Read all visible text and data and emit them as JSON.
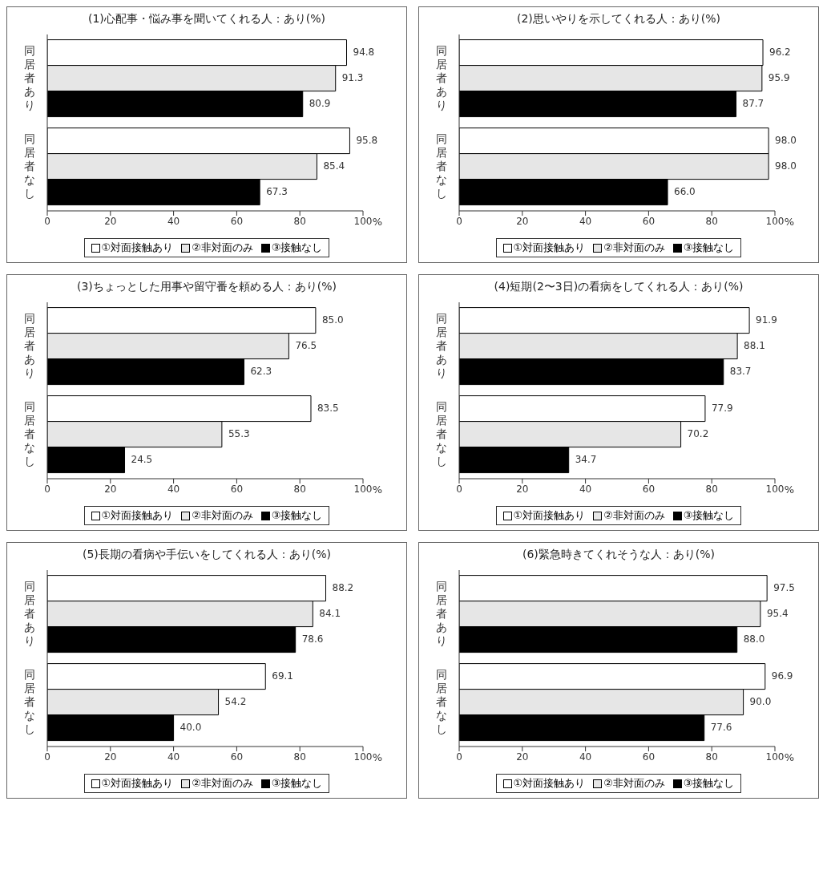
{
  "chart_data": [
    {
      "type": "bar",
      "orientation": "horizontal",
      "title": "(1)心配事・悩み事を聞いてくれる人：あり(%)",
      "xlabel": "%",
      "categories": [
        "同居者あり",
        "同居者なし"
      ],
      "xlim": [
        0,
        100
      ],
      "xticks": [
        0,
        20,
        40,
        60,
        80,
        100
      ],
      "legend": "bottom",
      "grid": false,
      "series": [
        {
          "name": "①対面接触あり",
          "color": "#ffffff",
          "values": [
            94.8,
            95.8
          ],
          "value_labels": [
            "94.8",
            "95.8"
          ]
        },
        {
          "name": "②非対面のみ",
          "color": "#e6e6e6",
          "values": [
            91.3,
            85.4
          ],
          "value_labels": [
            "91.3",
            "85.4"
          ]
        },
        {
          "name": "③接触なし",
          "color": "#000000",
          "values": [
            80.9,
            67.3
          ],
          "value_labels": [
            "80.9",
            "67.3"
          ]
        }
      ]
    },
    {
      "type": "bar",
      "orientation": "horizontal",
      "title": "(2)思いやりを示してくれる人：あり(%)",
      "xlabel": "%",
      "categories": [
        "同居者あり",
        "同居者なし"
      ],
      "xlim": [
        0,
        100
      ],
      "xticks": [
        0,
        20,
        40,
        60,
        80,
        100
      ],
      "legend": "bottom",
      "grid": false,
      "series": [
        {
          "name": "①対面接触あり",
          "color": "#ffffff",
          "values": [
            96.2,
            98.0
          ],
          "value_labels": [
            "96.2",
            "98.0"
          ]
        },
        {
          "name": "②非対面のみ",
          "color": "#e6e6e6",
          "values": [
            95.9,
            98.0
          ],
          "value_labels": [
            "95.9",
            "98.0"
          ]
        },
        {
          "name": "③接触なし",
          "color": "#000000",
          "values": [
            87.7,
            66.0
          ],
          "value_labels": [
            "87.7",
            "66.0"
          ]
        }
      ]
    },
    {
      "type": "bar",
      "orientation": "horizontal",
      "title": "(3)ちょっとした用事や留守番を頼める人：あり(%)",
      "xlabel": "%",
      "categories": [
        "同居者あり",
        "同居者なし"
      ],
      "xlim": [
        0,
        100
      ],
      "xticks": [
        0,
        20,
        40,
        60,
        80,
        100
      ],
      "legend": "bottom",
      "grid": false,
      "series": [
        {
          "name": "①対面接触あり",
          "color": "#ffffff",
          "values": [
            85.0,
            83.5
          ],
          "value_labels": [
            "85.0",
            "83.5"
          ]
        },
        {
          "name": "②非対面のみ",
          "color": "#e6e6e6",
          "values": [
            76.5,
            55.3
          ],
          "value_labels": [
            "76.5",
            "55.3"
          ]
        },
        {
          "name": "③接触なし",
          "color": "#000000",
          "values": [
            62.3,
            24.5
          ],
          "value_labels": [
            "62.3",
            "24.5"
          ]
        }
      ]
    },
    {
      "type": "bar",
      "orientation": "horizontal",
      "title": "(4)短期(2〜3日)の看病をしてくれる人：あり(%)",
      "xlabel": "%",
      "categories": [
        "同居者あり",
        "同居者なし"
      ],
      "xlim": [
        0,
        100
      ],
      "xticks": [
        0,
        20,
        40,
        60,
        80,
        100
      ],
      "legend": "bottom",
      "grid": false,
      "series": [
        {
          "name": "①対面接触あり",
          "color": "#ffffff",
          "values": [
            91.9,
            77.9
          ],
          "value_labels": [
            "91.9",
            "77.9"
          ]
        },
        {
          "name": "②非対面のみ",
          "color": "#e6e6e6",
          "values": [
            88.1,
            70.2
          ],
          "value_labels": [
            "88.1",
            "70.2"
          ]
        },
        {
          "name": "③接触なし",
          "color": "#000000",
          "values": [
            83.7,
            34.7
          ],
          "value_labels": [
            "83.7",
            "34.7"
          ]
        }
      ]
    },
    {
      "type": "bar",
      "orientation": "horizontal",
      "title": "(5)長期の看病や手伝いをしてくれる人：あり(%)",
      "xlabel": "%",
      "categories": [
        "同居者あり",
        "同居者なし"
      ],
      "xlim": [
        0,
        100
      ],
      "xticks": [
        0,
        20,
        40,
        60,
        80,
        100
      ],
      "legend": "bottom",
      "grid": false,
      "series": [
        {
          "name": "①対面接触あり",
          "color": "#ffffff",
          "values": [
            88.2,
            69.1
          ],
          "value_labels": [
            "88.2",
            "69.1"
          ]
        },
        {
          "name": "②非対面のみ",
          "color": "#e6e6e6",
          "values": [
            84.1,
            54.2
          ],
          "value_labels": [
            "84.1",
            "54.2"
          ]
        },
        {
          "name": "③接触なし",
          "color": "#000000",
          "values": [
            78.6,
            40.0
          ],
          "value_labels": [
            "78.6",
            "40.0"
          ]
        }
      ]
    },
    {
      "type": "bar",
      "orientation": "horizontal",
      "title": "(6)緊急時きてくれそうな人：あり(%)",
      "xlabel": "%",
      "categories": [
        "同居者あり",
        "同居者なし"
      ],
      "xlim": [
        0,
        100
      ],
      "xticks": [
        0,
        20,
        40,
        60,
        80,
        100
      ],
      "legend": "bottom",
      "grid": false,
      "series": [
        {
          "name": "①対面接触あり",
          "color": "#ffffff",
          "values": [
            97.5,
            96.9
          ],
          "value_labels": [
            "97.5",
            "96.9"
          ]
        },
        {
          "name": "②非対面のみ",
          "color": "#e6e6e6",
          "values": [
            95.4,
            90.0
          ],
          "value_labels": [
            "95.4",
            "90.0"
          ]
        },
        {
          "name": "③接触なし",
          "color": "#000000",
          "values": [
            88.0,
            77.6
          ],
          "value_labels": [
            "88.0",
            "77.6"
          ]
        }
      ]
    }
  ]
}
